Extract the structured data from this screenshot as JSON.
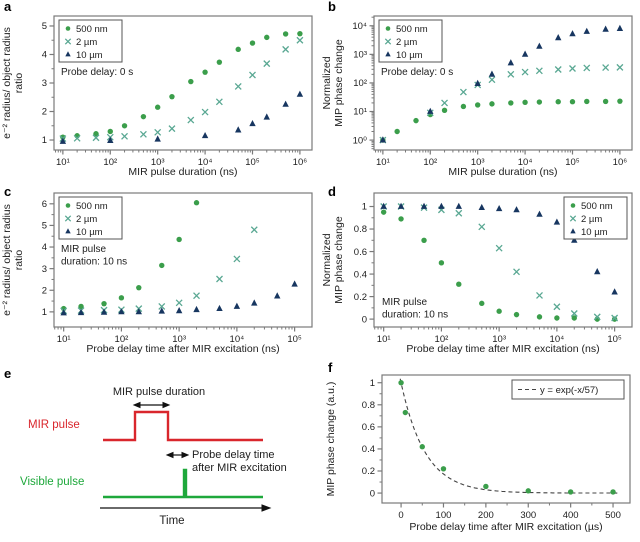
{
  "panels": {
    "a": "a",
    "b": "b",
    "c": "c",
    "d": "d",
    "e": "e",
    "f": "f"
  },
  "colors": {
    "green": "#3b9e4b",
    "teal": "#5aa893",
    "navy": "#173660",
    "red": "#d9262c",
    "pulse_green": "#1ea83b",
    "curve": "#444444",
    "frame": "#7a7a7a",
    "text": "#1d1d1d"
  },
  "diagram": {
    "mir_pulse_duration": "MIR pulse duration",
    "mir_pulse": "MIR pulse",
    "probe_delay_line1": "Probe delay time",
    "probe_delay_line2": "after MIR excitation",
    "visible_pulse": "Visible pulse",
    "time": "Time"
  },
  "chart_data": [
    {
      "id": "a",
      "type": "scatter",
      "xlabel": "MIR pulse duration (ns)",
      "ylabel": [
        "e⁻² radius/ object radius",
        "ratio"
      ],
      "xscale": "log",
      "xlim": [
        6.5,
        1800000
      ],
      "yscale": "linear",
      "ylim": [
        0.65,
        5.35
      ],
      "xticks": [
        {
          "v": 10,
          "label": "10¹"
        },
        {
          "v": 100,
          "label": "10²"
        },
        {
          "v": 1000,
          "label": "10³"
        },
        {
          "v": 10000,
          "label": "10⁴"
        },
        {
          "v": 100000,
          "label": "10⁵"
        },
        {
          "v": 1000000,
          "label": "10⁶"
        }
      ],
      "yticks": [
        {
          "v": 1,
          "label": "1"
        },
        {
          "v": 2,
          "label": "2"
        },
        {
          "v": 3,
          "label": "3"
        },
        {
          "v": 4,
          "label": "4"
        },
        {
          "v": 5,
          "label": "5"
        }
      ],
      "yminor": [
        1.5,
        2.5,
        3.5,
        4.5
      ],
      "grid": false,
      "legend": {
        "pos": "top-left"
      },
      "annotation": {
        "pos": "below-legend",
        "lines": [
          "Probe delay: 0 s"
        ]
      },
      "series": [
        {
          "name": "500 nm",
          "marker": "circle",
          "color": "#3b9e4b",
          "x": [
            10,
            20,
            50,
            100,
            200,
            500,
            1000,
            2000,
            5000,
            10000,
            20000,
            50000,
            100000,
            200000,
            500000,
            1000000
          ],
          "y": [
            1.1,
            1.15,
            1.22,
            1.3,
            1.5,
            1.82,
            2.15,
            2.52,
            3.05,
            3.38,
            3.73,
            4.18,
            4.4,
            4.6,
            4.72,
            4.73
          ]
        },
        {
          "name": "2 µm",
          "marker": "x",
          "color": "#5aa893",
          "x": [
            10,
            20,
            50,
            100,
            200,
            500,
            1000,
            2000,
            5000,
            10000,
            20000,
            50000,
            100000,
            200000,
            500000,
            1000000
          ],
          "y": [
            1.05,
            1.06,
            1.08,
            1.1,
            1.13,
            1.2,
            1.27,
            1.4,
            1.7,
            1.98,
            2.34,
            2.88,
            3.28,
            3.68,
            4.18,
            4.5
          ]
        },
        {
          "name": "10 µm",
          "marker": "triangle",
          "color": "#173660",
          "x": [
            10,
            100,
            1000,
            10000,
            50000,
            100000,
            200000,
            500000,
            1000000
          ],
          "y": [
            0.95,
            0.98,
            1.03,
            1.15,
            1.35,
            1.57,
            1.8,
            2.25,
            2.6
          ]
        }
      ]
    },
    {
      "id": "b",
      "type": "scatter",
      "xlabel": "MIR pulse duration (ns)",
      "ylabel": [
        "Normalized",
        "MIP phase change"
      ],
      "xscale": "log",
      "xlim": [
        6.5,
        1800000
      ],
      "yscale": "log",
      "ylim": [
        0.45,
        22000
      ],
      "xticks": [
        {
          "v": 10,
          "label": "10¹"
        },
        {
          "v": 100,
          "label": "10²"
        },
        {
          "v": 1000,
          "label": "10³"
        },
        {
          "v": 10000,
          "label": "10⁴"
        },
        {
          "v": 100000,
          "label": "10⁵"
        },
        {
          "v": 1000000,
          "label": "10⁶"
        }
      ],
      "yticks": [
        {
          "v": 1,
          "label": "10⁰"
        },
        {
          "v": 10,
          "label": "10¹"
        },
        {
          "v": 100,
          "label": "10²"
        },
        {
          "v": 1000,
          "label": "10³"
        },
        {
          "v": 10000,
          "label": "10⁴"
        }
      ],
      "grid": false,
      "legend": {
        "pos": "top-left"
      },
      "annotation": {
        "pos": "below-legend",
        "lines": [
          "Probe delay: 0 s"
        ]
      },
      "series": [
        {
          "name": "500 nm",
          "marker": "circle",
          "color": "#3b9e4b",
          "x": [
            10,
            20,
            50,
            100,
            200,
            500,
            1000,
            2000,
            5000,
            10000,
            20000,
            50000,
            100000,
            200000,
            500000,
            1000000
          ],
          "y": [
            1.0,
            2.0,
            4.8,
            7.8,
            11,
            15,
            17,
            18.5,
            20,
            21,
            21.5,
            22,
            22,
            22.5,
            22.5,
            23
          ]
        },
        {
          "name": "2 µm",
          "marker": "x",
          "color": "#5aa893",
          "x": [
            10,
            100,
            200,
            500,
            1000,
            2000,
            5000,
            10000,
            20000,
            50000,
            100000,
            200000,
            500000,
            1000000
          ],
          "y": [
            1.0,
            9,
            20,
            48,
            85,
            130,
            200,
            240,
            265,
            295,
            320,
            335,
            345,
            350
          ]
        },
        {
          "name": "10 µm",
          "marker": "triangle",
          "color": "#173660",
          "x": [
            10,
            100,
            1000,
            2000,
            5000,
            10000,
            20000,
            50000,
            100000,
            200000,
            500000,
            1000000
          ],
          "y": [
            1.0,
            10,
            95,
            200,
            500,
            1000,
            1900,
            3800,
            5200,
            6300,
            7500,
            8000
          ]
        }
      ]
    },
    {
      "id": "c",
      "type": "scatter",
      "xlabel": "Probe delay time after MIR excitation (ns)",
      "ylabel": [
        "e⁻² radius/ object radius",
        "ratio"
      ],
      "xscale": "log",
      "xlim": [
        6.8,
        200000
      ],
      "yscale": "linear",
      "ylim": [
        0.3,
        6.5
      ],
      "xticks": [
        {
          "v": 10,
          "label": "10¹"
        },
        {
          "v": 100,
          "label": "10²"
        },
        {
          "v": 1000,
          "label": "10³"
        },
        {
          "v": 10000,
          "label": "10⁴"
        },
        {
          "v": 100000,
          "label": "10⁵"
        }
      ],
      "yticks": [
        {
          "v": 1,
          "label": "1"
        },
        {
          "v": 2,
          "label": "2"
        },
        {
          "v": 3,
          "label": "3"
        },
        {
          "v": 4,
          "label": "4"
        },
        {
          "v": 5,
          "label": "5"
        },
        {
          "v": 6,
          "label": "6"
        }
      ],
      "yminor": [
        1.5,
        2.5,
        3.5,
        4.5,
        5.5
      ],
      "grid": false,
      "legend": {
        "pos": "top-left"
      },
      "annotation": {
        "pos": "below-legend",
        "lines": [
          "MIR pulse",
          "duration: 10 ns"
        ]
      },
      "series": [
        {
          "name": "500 nm",
          "marker": "circle",
          "color": "#3b9e4b",
          "x": [
            10,
            20,
            50,
            100,
            200,
            500,
            1000,
            2000
          ],
          "y": [
            1.15,
            1.25,
            1.38,
            1.65,
            2.12,
            3.15,
            4.35,
            6.05
          ]
        },
        {
          "name": "2 µm",
          "marker": "x",
          "color": "#5aa893",
          "x": [
            10,
            20,
            50,
            100,
            200,
            500,
            1000,
            2000,
            5000,
            10000,
            20000
          ],
          "y": [
            1.05,
            1.06,
            1.08,
            1.1,
            1.15,
            1.25,
            1.42,
            1.75,
            2.52,
            3.45,
            4.8
          ]
        },
        {
          "name": "10 µm",
          "marker": "triangle",
          "color": "#173660",
          "x": [
            10,
            20,
            50,
            100,
            200,
            500,
            1000,
            2000,
            5000,
            10000,
            20000,
            50000,
            100000
          ],
          "y": [
            0.95,
            0.96,
            0.98,
            1.0,
            1.0,
            1.03,
            1.05,
            1.1,
            1.15,
            1.25,
            1.4,
            1.73,
            2.28
          ]
        }
      ]
    },
    {
      "id": "d",
      "type": "scatter",
      "xlabel": "Probe delay time after MIR excitation (ns)",
      "ylabel": [
        "Normalized",
        "MIP phase change"
      ],
      "xscale": "log",
      "xlim": [
        6.8,
        200000
      ],
      "yscale": "linear",
      "ylim": [
        -0.07,
        1.12
      ],
      "xticks": [
        {
          "v": 10,
          "label": "10¹"
        },
        {
          "v": 100,
          "label": "10²"
        },
        {
          "v": 1000,
          "label": "10³"
        },
        {
          "v": 10000,
          "label": "10⁴"
        },
        {
          "v": 100000,
          "label": "10⁵"
        }
      ],
      "yticks": [
        {
          "v": 0,
          "label": "0"
        },
        {
          "v": 0.2,
          "label": "0.2"
        },
        {
          "v": 0.4,
          "label": "0.4"
        },
        {
          "v": 0.6,
          "label": "0.6"
        },
        {
          "v": 0.8,
          "label": "0.8"
        },
        {
          "v": 1,
          "label": "1"
        }
      ],
      "yminor": [
        0.1,
        0.3,
        0.5,
        0.7,
        0.9
      ],
      "grid": false,
      "legend": {
        "pos": "top-right"
      },
      "annotation": {
        "pos": "bottom-left",
        "lines": [
          "MIR pulse",
          "duration: 10 ns"
        ]
      },
      "series": [
        {
          "name": "500 nm",
          "marker": "circle",
          "color": "#3b9e4b",
          "x": [
            10,
            20,
            50,
            100,
            200,
            500,
            1000,
            2000,
            5000,
            10000,
            20000,
            50000,
            100000
          ],
          "y": [
            0.95,
            0.89,
            0.7,
            0.5,
            0.31,
            0.14,
            0.07,
            0.04,
            0.02,
            0.01,
            0.01,
            0.0,
            0.0
          ]
        },
        {
          "name": "2 µm",
          "marker": "x",
          "color": "#5aa893",
          "x": [
            10,
            20,
            50,
            100,
            200,
            500,
            1000,
            2000,
            5000,
            10000,
            20000,
            50000,
            100000
          ],
          "y": [
            1.0,
            1.0,
            0.99,
            0.97,
            0.94,
            0.82,
            0.63,
            0.42,
            0.21,
            0.11,
            0.05,
            0.02,
            0.01
          ]
        },
        {
          "name": "10 µm",
          "marker": "triangle",
          "color": "#173660",
          "x": [
            10,
            20,
            50,
            100,
            200,
            500,
            1000,
            2000,
            5000,
            10000,
            20000,
            50000,
            100000
          ],
          "y": [
            1.0,
            1.0,
            1.0,
            1.0,
            1.0,
            0.99,
            0.98,
            0.97,
            0.93,
            0.86,
            0.7,
            0.42,
            0.24
          ]
        }
      ]
    },
    {
      "id": "f",
      "type": "scatter",
      "xlabel": "Probe delay time after MIR excitation (µs)",
      "ylabel": [
        "MIP phase change (a.u.)"
      ],
      "xscale": "linear",
      "xlim": [
        -45,
        540
      ],
      "yscale": "linear",
      "ylim": [
        -0.09,
        1.07
      ],
      "xticks": [
        {
          "v": 0,
          "label": "0"
        },
        {
          "v": 100,
          "label": "100"
        },
        {
          "v": 200,
          "label": "200"
        },
        {
          "v": 300,
          "label": "300"
        },
        {
          "v": 400,
          "label": "400"
        },
        {
          "v": 500,
          "label": "500"
        }
      ],
      "xminor": [
        50,
        150,
        250,
        350,
        450
      ],
      "yticks": [
        {
          "v": 0,
          "label": "0"
        },
        {
          "v": 0.2,
          "label": "0.2"
        },
        {
          "v": 0.4,
          "label": "0.4"
        },
        {
          "v": 0.6,
          "label": "0.6"
        },
        {
          "v": 0.8,
          "label": "0.8"
        },
        {
          "v": 1,
          "label": "1"
        }
      ],
      "yminor": [
        0.1,
        0.3,
        0.5,
        0.7,
        0.9
      ],
      "grid": false,
      "legend": {
        "pos": "fit-top-right",
        "fit_label": "y = exp(-x/57)"
      },
      "fit": {
        "type": "exp-decay",
        "tau": 57,
        "xstart": -2,
        "xend": 510,
        "color": "#444444"
      },
      "series": [
        {
          "name": "data",
          "marker": "circle",
          "color": "#3b9e4b",
          "x": [
            0,
            10,
            50,
            100,
            200,
            300,
            400,
            500
          ],
          "y": [
            1.0,
            0.73,
            0.42,
            0.22,
            0.06,
            0.02,
            0.01,
            0.01
          ]
        }
      ]
    }
  ]
}
